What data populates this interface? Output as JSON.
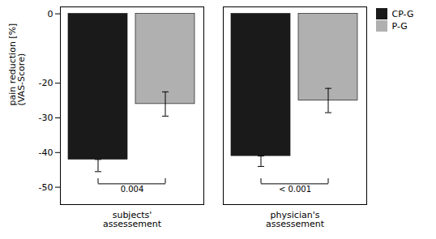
{
  "chart_data": {
    "type": "bar",
    "categories": [
      "subjects'\nassessement",
      "physician's\nassessement"
    ],
    "series": [
      {
        "name": "CP-G",
        "color": "#1a1a1a",
        "values": [
          -42,
          -41
        ],
        "error_minus": [
          3.5,
          3.0
        ],
        "error_plus": [
          0,
          0
        ]
      },
      {
        "name": "P-G",
        "color": "#b0b0b0",
        "values": [
          -26,
          -25
        ],
        "error_minus": [
          3.5,
          3.5
        ],
        "error_plus": [
          3.5,
          3.5
        ]
      }
    ],
    "ylabel": "pain reduction [%]\n(VAS-Score)",
    "ylim": [
      -55,
      2
    ],
    "yticks": [
      0,
      -20,
      -30,
      -40,
      -50
    ],
    "annotations": [
      "0.004",
      "< 0.001"
    ],
    "legend": "upper right",
    "grid": false
  }
}
